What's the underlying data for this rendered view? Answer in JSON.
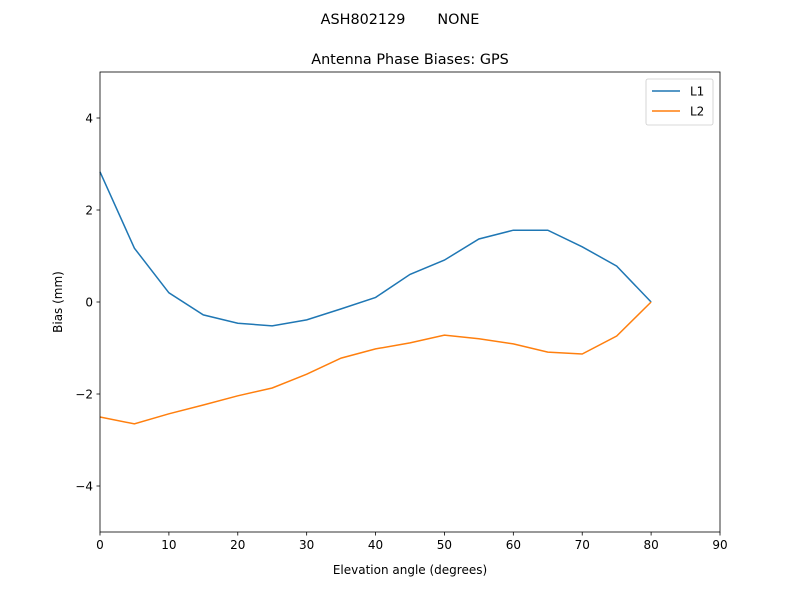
{
  "chart_data": {
    "type": "line",
    "suptitle": "ASH802129       NONE",
    "title": "Antenna Phase Biases: GPS",
    "xlabel": "Elevation angle (degrees)",
    "ylabel": "Bias (mm)",
    "xlim": [
      0,
      90
    ],
    "ylim": [
      -5,
      5
    ],
    "xticks": [
      0,
      10,
      20,
      30,
      40,
      50,
      60,
      70,
      80,
      90
    ],
    "yticks": [
      -4,
      -2,
      0,
      2,
      4
    ],
    "ytick_labels": [
      "−4",
      "−2",
      "0",
      "2",
      "4"
    ],
    "grid": false,
    "legend_position": "top-right",
    "x": [
      0,
      5,
      10,
      15,
      20,
      25,
      30,
      35,
      40,
      45,
      50,
      55,
      60,
      65,
      70,
      75,
      80
    ],
    "series": [
      {
        "name": "L1",
        "color": "#1f77b4",
        "values": [
          2.83,
          1.17,
          0.2,
          -0.28,
          -0.46,
          -0.52,
          -0.39,
          -0.15,
          0.1,
          0.6,
          0.91,
          1.37,
          1.56,
          1.56,
          1.2,
          0.78,
          0.0
        ]
      },
      {
        "name": "L2",
        "color": "#ff7f0e",
        "values": [
          -2.5,
          -2.65,
          -2.43,
          -2.24,
          -2.04,
          -1.87,
          -1.57,
          -1.22,
          -1.02,
          -0.89,
          -0.72,
          -0.8,
          -0.91,
          -1.09,
          -1.13,
          -0.74,
          0.0
        ]
      }
    ]
  }
}
